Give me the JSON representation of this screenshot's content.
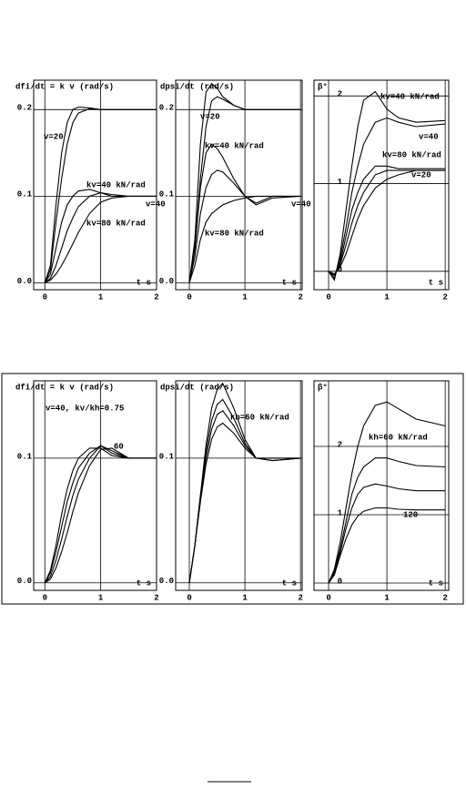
{
  "chart_data": [
    {
      "type": "line",
      "title": "dfi/dt = k v (rad/s)",
      "x_label": "t s",
      "x": [
        0,
        0.1,
        0.2,
        0.3,
        0.4,
        0.5,
        0.6,
        0.8,
        1.0,
        1.2,
        1.5,
        2.0
      ],
      "xlim": [
        -0.2,
        2.0
      ],
      "xticks": [
        0,
        1,
        2
      ],
      "ylim": [
        -0.008,
        0.234
      ],
      "yticks": [
        {
          "value": 0,
          "label": "0.0"
        },
        0.1,
        0.2
      ],
      "grid": true,
      "color": "#000000",
      "annotations": [
        "v=20",
        "kv=40 kN/rad",
        "v=40",
        "kv=80 kN/rad"
      ],
      "series": [
        {
          "values": [
            0,
            0.02,
            0.09,
            0.15,
            0.185,
            0.2,
            0.203,
            0.202,
            0.2,
            0.2,
            0.2,
            0.2
          ]
        },
        {
          "values": [
            0,
            0.015,
            0.07,
            0.12,
            0.16,
            0.185,
            0.196,
            0.201,
            0.2,
            0.2,
            0.2,
            0.2
          ]
        },
        {
          "values": [
            0,
            0.01,
            0.04,
            0.07,
            0.09,
            0.1,
            0.106,
            0.108,
            0.104,
            0.1,
            0.1,
            0.1
          ]
        },
        {
          "values": [
            0,
            0.005,
            0.02,
            0.04,
            0.06,
            0.075,
            0.088,
            0.1,
            0.104,
            0.102,
            0.1,
            0.1
          ]
        },
        {
          "values": [
            0,
            0.003,
            0.01,
            0.02,
            0.032,
            0.045,
            0.058,
            0.08,
            0.093,
            0.098,
            0.1,
            0.1
          ]
        }
      ]
    },
    {
      "type": "line",
      "title": "dpsi/dt (rad/s)",
      "x_label": "t s",
      "x": [
        0,
        0.1,
        0.2,
        0.3,
        0.4,
        0.5,
        0.6,
        0.8,
        1.0,
        1.2,
        1.5,
        2.0
      ],
      "xlim": [
        -0.246,
        2.03
      ],
      "xticks": [
        0,
        1,
        2
      ],
      "ylim": [
        -0.008,
        0.234
      ],
      "yticks": [
        {
          "value": 0,
          "label": "0.0"
        },
        0.1,
        0.2
      ],
      "grid": true,
      "color": "#000000",
      "annotations": [
        "v=20",
        "kv=40 kN/rad",
        "kv=80 kN/rad",
        "v=40"
      ],
      "series": [
        {
          "values": [
            0,
            0.05,
            0.16,
            0.22,
            0.23,
            0.225,
            0.215,
            0.205,
            0.2,
            0.2,
            0.2,
            0.2
          ]
        },
        {
          "values": [
            0,
            0.04,
            0.12,
            0.18,
            0.21,
            0.215,
            0.212,
            0.205,
            0.2,
            0.2,
            0.2,
            0.2
          ]
        },
        {
          "values": [
            0,
            0.04,
            0.11,
            0.15,
            0.16,
            0.155,
            0.145,
            0.12,
            0.1,
            0.09,
            0.098,
            0.1
          ]
        },
        {
          "values": [
            0,
            0.03,
            0.08,
            0.11,
            0.125,
            0.13,
            0.128,
            0.115,
            0.1,
            0.092,
            0.1,
            0.1
          ]
        },
        {
          "values": [
            0,
            0.02,
            0.05,
            0.07,
            0.08,
            0.085,
            0.09,
            0.095,
            0.098,
            0.1,
            0.1,
            0.1
          ]
        }
      ]
    },
    {
      "type": "line",
      "title": "β°",
      "x_label": "t s",
      "x": [
        0,
        0.1,
        0.2,
        0.3,
        0.4,
        0.5,
        0.6,
        0.8,
        1.0,
        1.2,
        1.5,
        2.0
      ],
      "xlim": [
        -0.25,
        2.06
      ],
      "xticks": [
        0,
        1,
        2
      ],
      "ylim": [
        -0.21,
        2.18
      ],
      "yticks": [
        0,
        1,
        2
      ],
      "grid": true,
      "color": "#000000",
      "annotations": [
        "kv=40 kN/rad",
        "v=40",
        "kv=80 kN/rad",
        "v=20"
      ],
      "series": [
        {
          "values": [
            0,
            -0.1,
            0.2,
            0.7,
            1.2,
            1.65,
            1.95,
            2.05,
            1.85,
            1.75,
            1.7,
            1.72
          ]
        },
        {
          "values": [
            0,
            -0.08,
            0.15,
            0.5,
            0.9,
            1.2,
            1.45,
            1.7,
            1.75,
            1.7,
            1.65,
            1.68
          ]
        },
        {
          "values": [
            0,
            -0.05,
            0.1,
            0.4,
            0.7,
            0.9,
            1.05,
            1.2,
            1.2,
            1.17,
            1.17,
            1.17
          ]
        },
        {
          "values": [
            0,
            -0.04,
            0.08,
            0.3,
            0.55,
            0.75,
            0.9,
            1.1,
            1.15,
            1.15,
            1.15,
            1.15
          ]
        },
        {
          "values": [
            0,
            -0.03,
            0.05,
            0.2,
            0.4,
            0.6,
            0.75,
            0.95,
            1.05,
            1.1,
            1.15,
            1.15
          ]
        }
      ]
    },
    {
      "type": "line",
      "title": "dfi/dt = k v (rad/s)",
      "x_label": "t s",
      "x": [
        0,
        0.1,
        0.2,
        0.3,
        0.4,
        0.5,
        0.6,
        0.8,
        1.0,
        1.2,
        1.5,
        2.0
      ],
      "xlim": [
        -0.2,
        2.0
      ],
      "xticks": [
        0,
        1,
        2
      ],
      "ylim": [
        -0.006,
        0.162
      ],
      "yticks": [
        {
          "value": 0,
          "label": "0.0"
        },
        0.1
      ],
      "grid": true,
      "color": "#000000",
      "annotations": [
        "v=40, kv/kh=0.75",
        "60"
      ],
      "series": [
        {
          "values": [
            0,
            0.01,
            0.03,
            0.055,
            0.075,
            0.09,
            0.1,
            0.108,
            0.108,
            0.102,
            0.1,
            0.1
          ]
        },
        {
          "values": [
            0,
            0.008,
            0.025,
            0.045,
            0.065,
            0.08,
            0.092,
            0.104,
            0.11,
            0.104,
            0.1,
            0.1
          ]
        },
        {
          "values": [
            0,
            0.005,
            0.018,
            0.035,
            0.053,
            0.07,
            0.083,
            0.1,
            0.11,
            0.106,
            0.1,
            0.1
          ]
        },
        {
          "values": [
            0,
            0.003,
            0.012,
            0.025,
            0.04,
            0.057,
            0.072,
            0.094,
            0.107,
            0.108,
            0.1,
            0.1
          ]
        }
      ]
    },
    {
      "type": "line",
      "title": "dpsi/dt (rad/s)",
      "x_label": "t s",
      "x": [
        0,
        0.1,
        0.2,
        0.3,
        0.4,
        0.5,
        0.6,
        0.8,
        1.0,
        1.2,
        1.5,
        2.0
      ],
      "xlim": [
        -0.246,
        2.03
      ],
      "xticks": [
        0,
        1,
        2
      ],
      "ylim": [
        -0.006,
        0.162
      ],
      "yticks": [
        {
          "value": 0,
          "label": "0.0"
        },
        0.1
      ],
      "grid": true,
      "color": "#000000",
      "annotations": [
        "kh=60 kN/rad"
      ],
      "series": [
        {
          "values": [
            0,
            0.03,
            0.07,
            0.11,
            0.14,
            0.155,
            0.16,
            0.14,
            0.115,
            0.1,
            0.098,
            0.1
          ]
        },
        {
          "values": [
            0,
            0.03,
            0.07,
            0.105,
            0.13,
            0.143,
            0.147,
            0.132,
            0.112,
            0.1,
            0.098,
            0.1
          ]
        },
        {
          "values": [
            0,
            0.03,
            0.068,
            0.1,
            0.123,
            0.135,
            0.138,
            0.126,
            0.11,
            0.1,
            0.1,
            0.1
          ]
        },
        {
          "values": [
            0,
            0.03,
            0.065,
            0.095,
            0.115,
            0.125,
            0.128,
            0.12,
            0.108,
            0.1,
            0.1,
            0.1
          ]
        }
      ]
    },
    {
      "type": "line",
      "title": "β°",
      "x_label": "t s",
      "x": [
        0,
        0.1,
        0.2,
        0.3,
        0.4,
        0.5,
        0.6,
        0.8,
        1.0,
        1.2,
        1.5,
        2.0
      ],
      "xlim": [
        -0.25,
        2.06
      ],
      "xticks": [
        0,
        1,
        2
      ],
      "ylim": [
        -0.107,
        2.96
      ],
      "yticks": [
        0,
        1,
        2
      ],
      "grid": true,
      "color": "#000000",
      "annotations": [
        "kh=60 kN/rad",
        "120"
      ],
      "series": [
        {
          "values": [
            0,
            0.2,
            0.6,
            1.1,
            1.6,
            2.0,
            2.3,
            2.6,
            2.65,
            2.55,
            2.4,
            2.3
          ]
        },
        {
          "values": [
            0,
            0.18,
            0.5,
            0.9,
            1.3,
            1.55,
            1.7,
            1.83,
            1.83,
            1.78,
            1.72,
            1.7
          ]
        },
        {
          "values": [
            0,
            0.15,
            0.45,
            0.8,
            1.1,
            1.3,
            1.4,
            1.45,
            1.42,
            1.38,
            1.35,
            1.35
          ]
        },
        {
          "values": [
            0,
            0.12,
            0.4,
            0.65,
            0.85,
            0.98,
            1.05,
            1.1,
            1.1,
            1.08,
            1.07,
            1.07
          ]
        }
      ]
    }
  ]
}
